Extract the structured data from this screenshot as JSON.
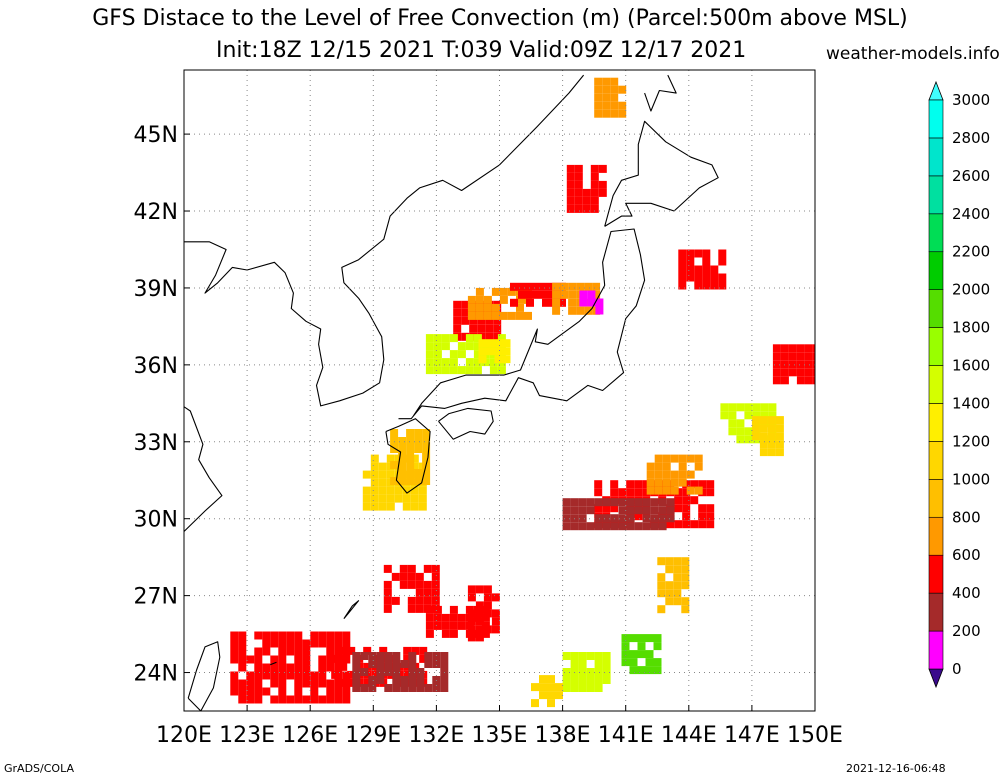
{
  "header": {
    "title_line1": "GFS Distace to the Level of Free Convection (m) (Parcel:500m above MSL)",
    "title_line2": "Init:18Z 12/15 2021 T:039 Valid:09Z 12/17 2021",
    "site": "weather-models.info"
  },
  "footer": {
    "left": "GrADS/COLA",
    "right": "2021-12-16-06:48"
  },
  "chart_data": {
    "type": "heatmap",
    "title": "GFS Distace to the Level of Free Convection (m) (Parcel:500m above MSL)",
    "subtitle": "Init:18Z 12/15 2021 T:039 Valid:09Z 12/17 2021",
    "xlim": [
      120,
      150
    ],
    "ylim": [
      22.5,
      47.5
    ],
    "x_ticks": [
      "120E",
      "123E",
      "126E",
      "129E",
      "132E",
      "135E",
      "138E",
      "141E",
      "144E",
      "147E",
      "150E"
    ],
    "y_ticks": [
      "24N",
      "27N",
      "30N",
      "33N",
      "36N",
      "39N",
      "42N",
      "45N"
    ],
    "grid": true,
    "colorbar": {
      "levels": [
        "0",
        "200",
        "400",
        "600",
        "800",
        "1000",
        "1200",
        "1400",
        "1600",
        "1800",
        "2000",
        "2200",
        "2400",
        "2600",
        "2800",
        "3000"
      ],
      "colors": [
        "#3a0a8c",
        "#ff00ff",
        "#a52a2a",
        "#ff0000",
        "#ff9900",
        "#ffbf00",
        "#ffd700",
        "#ffef00",
        "#d4ff00",
        "#99ff00",
        "#55dd00",
        "#00cc00",
        "#00dd55",
        "#00e0a0",
        "#00e5cc",
        "#00ffee",
        "#40ffff"
      ],
      "placement": "right"
    },
    "regions": [
      {
        "lon": [
          122.2,
          127.6
        ],
        "lat": [
          22.8,
          25.6
        ],
        "value": "400-600"
      },
      {
        "lon": [
          127.0,
          131.5
        ],
        "lat": [
          23.5,
          25.0
        ],
        "value": "400-600"
      },
      {
        "lon": [
          128.0,
          132.5
        ],
        "lat": [
          23.5,
          24.8
        ],
        "value": "200-400"
      },
      {
        "lon": [
          129.5,
          132.0
        ],
        "lat": [
          26.6,
          28.2
        ],
        "value": "400-600"
      },
      {
        "lon": [
          131.5,
          134.5
        ],
        "lat": [
          25.6,
          26.6
        ],
        "value": "400-600"
      },
      {
        "lon": [
          133.5,
          135.0
        ],
        "lat": [
          25.5,
          27.4
        ],
        "value": "400-600"
      },
      {
        "lon": [
          132.8,
          134.8
        ],
        "lat": [
          37.0,
          38.5
        ],
        "value": "400-600"
      },
      {
        "lon": [
          133.5,
          136.5
        ],
        "lat": [
          38.0,
          39.0
        ],
        "value": "600-800"
      },
      {
        "lon": [
          135.5,
          137.8
        ],
        "lat": [
          38.4,
          39.2
        ],
        "value": "400-600"
      },
      {
        "lon": [
          137.5,
          139.5
        ],
        "lat": [
          38.0,
          39.2
        ],
        "value": "600-800"
      },
      {
        "lon": [
          138.8,
          139.8
        ],
        "lat": [
          38.2,
          38.9
        ],
        "value": "0-200"
      },
      {
        "lon": [
          131.5,
          135.0
        ],
        "lat": [
          35.8,
          37.2
        ],
        "value": "1400-1800"
      },
      {
        "lon": [
          134.0,
          135.5
        ],
        "lat": [
          36.2,
          37.0
        ],
        "value": "1200-1400"
      },
      {
        "lon": [
          128.5,
          131.5
        ],
        "lat": [
          30.5,
          32.5
        ],
        "value": "1000-1200"
      },
      {
        "lon": [
          129.8,
          131.5
        ],
        "lat": [
          31.5,
          33.5
        ],
        "value": "800-1000"
      },
      {
        "lon": [
          145.5,
          148.0
        ],
        "lat": [
          33.0,
          34.5
        ],
        "value": "1400-1800"
      },
      {
        "lon": [
          147.0,
          148.5
        ],
        "lat": [
          32.6,
          34.0
        ],
        "value": "1000-1200"
      },
      {
        "lon": [
          140.8,
          142.5
        ],
        "lat": [
          24.0,
          25.5
        ],
        "value": "1800-2200"
      },
      {
        "lon": [
          138.0,
          140.0
        ],
        "lat": [
          23.5,
          24.8
        ],
        "value": "1400-2000"
      },
      {
        "lon": [
          136.5,
          138.0
        ],
        "lat": [
          22.8,
          23.9
        ],
        "value": "1000-1200"
      },
      {
        "lon": [
          138.2,
          139.8
        ],
        "lat": [
          42.0,
          43.8
        ],
        "value": "400-600"
      },
      {
        "lon": [
          139.5,
          141.0
        ],
        "lat": [
          45.8,
          47.2
        ],
        "value": "600-800"
      },
      {
        "lon": [
          143.5,
          145.5
        ],
        "lat": [
          39.0,
          40.5
        ],
        "value": "400-600"
      },
      {
        "lon": [
          148.0,
          150.0
        ],
        "lat": [
          35.5,
          36.8
        ],
        "value": "400-600"
      },
      {
        "lon": [
          139.5,
          145.0
        ],
        "lat": [
          29.8,
          31.5
        ],
        "value": "400-600"
      },
      {
        "lon": [
          142.0,
          144.5
        ],
        "lat": [
          31.0,
          32.5
        ],
        "value": "600-800"
      },
      {
        "lon": [
          138.0,
          143.0
        ],
        "lat": [
          29.8,
          30.8
        ],
        "value": "200-400"
      },
      {
        "lon": [
          142.5,
          144.0
        ],
        "lat": [
          26.5,
          28.5
        ],
        "value": "800-1000"
      }
    ]
  }
}
